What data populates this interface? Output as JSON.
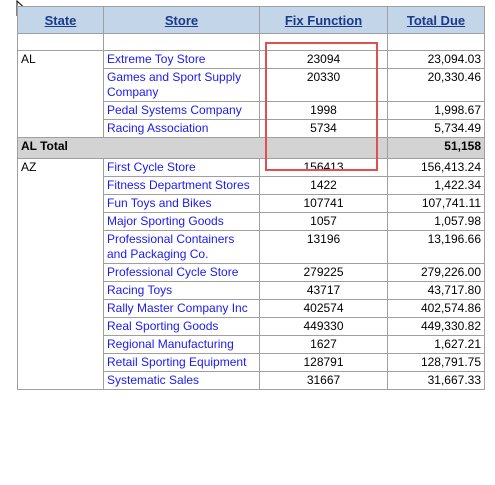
{
  "table": {
    "headers": {
      "state": "State",
      "store": "Store",
      "fix_function": "Fix Function",
      "total_due": "Total Due"
    },
    "groups": [
      {
        "state": "AL",
        "rows": [
          {
            "store": "Extreme Toy Store",
            "fix": "23094",
            "total": "23,094.03"
          },
          {
            "store": "Games and Sport Supply Company",
            "fix": "20330",
            "total": "20,330.46"
          },
          {
            "store": "Pedal Systems Company",
            "fix": "1998",
            "total": "1,998.67"
          },
          {
            "store": "Racing Association",
            "fix": "5734",
            "total": "5,734.49"
          }
        ],
        "total_label": "AL Total",
        "total_value": "51,158"
      },
      {
        "state": "AZ",
        "rows": [
          {
            "store": "First Cycle Store",
            "fix": "156413",
            "total": "156,413.24"
          },
          {
            "store": "Fitness Department Stores",
            "fix": "1422",
            "total": "1,422.34"
          },
          {
            "store": "Fun Toys and Bikes",
            "fix": "107741",
            "total": "107,741.11"
          },
          {
            "store": "Major Sporting Goods",
            "fix": "1057",
            "total": "1,057.98"
          },
          {
            "store": "Professional Containers and Packaging Co.",
            "fix": "13196",
            "total": "13,196.66"
          },
          {
            "store": "Professional Cycle Store",
            "fix": "279225",
            "total": "279,226.00"
          },
          {
            "store": "Racing Toys",
            "fix": "43717",
            "total": "43,717.80"
          },
          {
            "store": "Rally Master Company Inc",
            "fix": "402574",
            "total": "402,574.86"
          },
          {
            "store": "Real Sporting Goods",
            "fix": "449330",
            "total": "449,330.82"
          },
          {
            "store": "Regional Manufacturing",
            "fix": "1627",
            "total": "1,627.21"
          },
          {
            "store": "Retail Sporting Equipment",
            "fix": "128791",
            "total": "128,791.75"
          },
          {
            "store": "Systematic Sales",
            "fix": "31667",
            "total": "31,667.33"
          }
        ]
      }
    ]
  },
  "colors": {
    "header_bg": "#c3d5e8",
    "header_text": "#1a3a8a",
    "link": "#1a1af0",
    "total_row_bg": "#d3d3d3",
    "highlight_border": "#e05050"
  }
}
